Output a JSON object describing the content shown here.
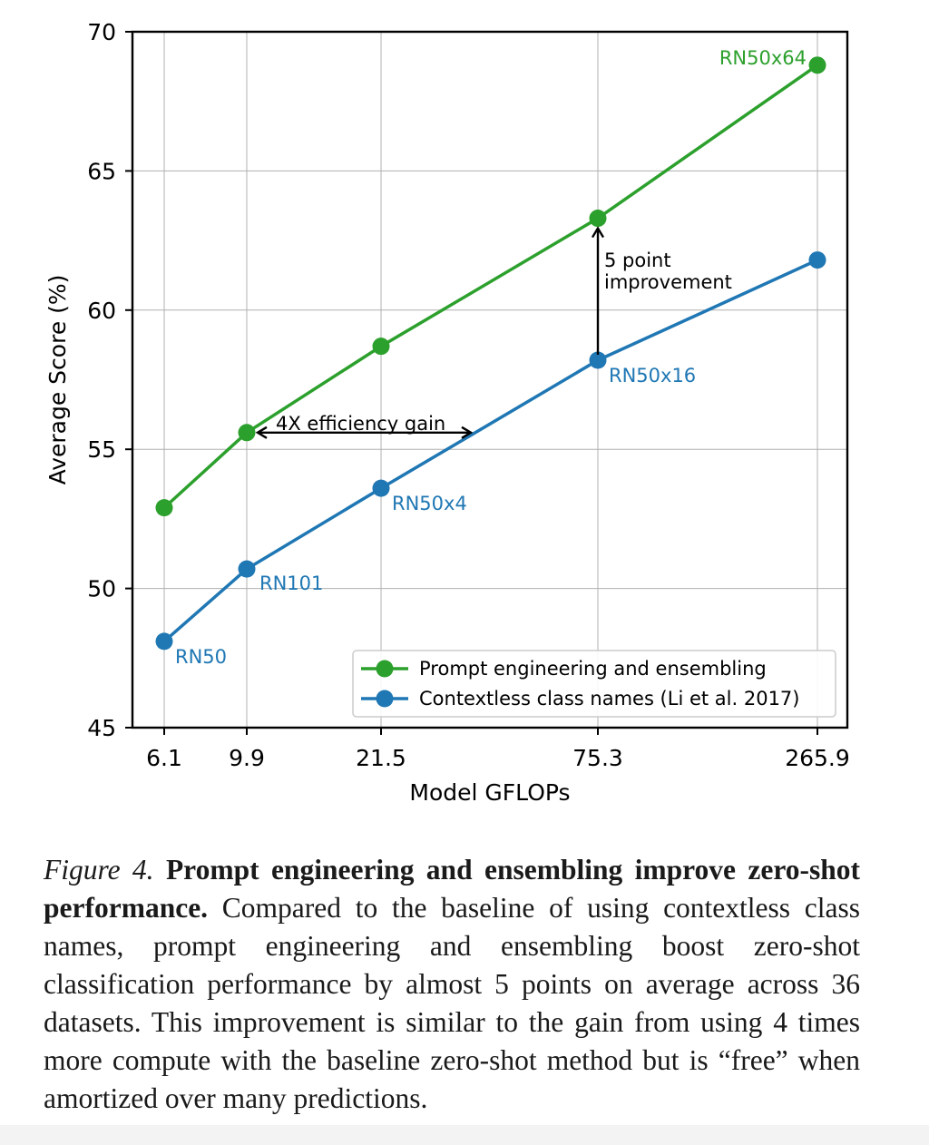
{
  "chart_data": {
    "type": "line",
    "x_categories": [
      "6.1",
      "9.9",
      "21.5",
      "75.3",
      "265.9"
    ],
    "xlabel": "Model GFLOPs",
    "ylabel": "Average Score (%)",
    "ylim": [
      45,
      70
    ],
    "yticks": [
      "45",
      "50",
      "55",
      "60",
      "65",
      "70"
    ],
    "grid": true,
    "legend_position": "lower-right",
    "series": [
      {
        "name": "Prompt engineering and ensembling",
        "color": "#2ca02c",
        "values": [
          52.9,
          55.6,
          58.7,
          63.3,
          68.8
        ],
        "point_labels": [
          "",
          "",
          "",
          "",
          "RN50x64"
        ]
      },
      {
        "name": "Contextless class names (Li et al. 2017)",
        "color": "#1f77b4",
        "values": [
          48.1,
          50.7,
          53.6,
          58.2,
          61.8
        ],
        "point_labels": [
          "RN50",
          "RN101",
          "RN50x4",
          "RN50x16",
          ""
        ]
      }
    ],
    "annotations": [
      {
        "text": "4X efficiency gain"
      },
      {
        "text_line1": "5 point",
        "text_line2": "improvement"
      }
    ]
  },
  "caption": {
    "figure_label": "Figure 4.",
    "bold_title": "Prompt engineering and ensembling improve zero-shot performance.",
    "body": "Compared to the baseline of using contextless class names, prompt engineering and ensembling boost zero-shot classification performance by almost 5 points on average across 36 datasets. This improvement is similar to the gain from using 4 times more compute with the baseline zero-shot method but is “free” when amortized over many predictions."
  }
}
